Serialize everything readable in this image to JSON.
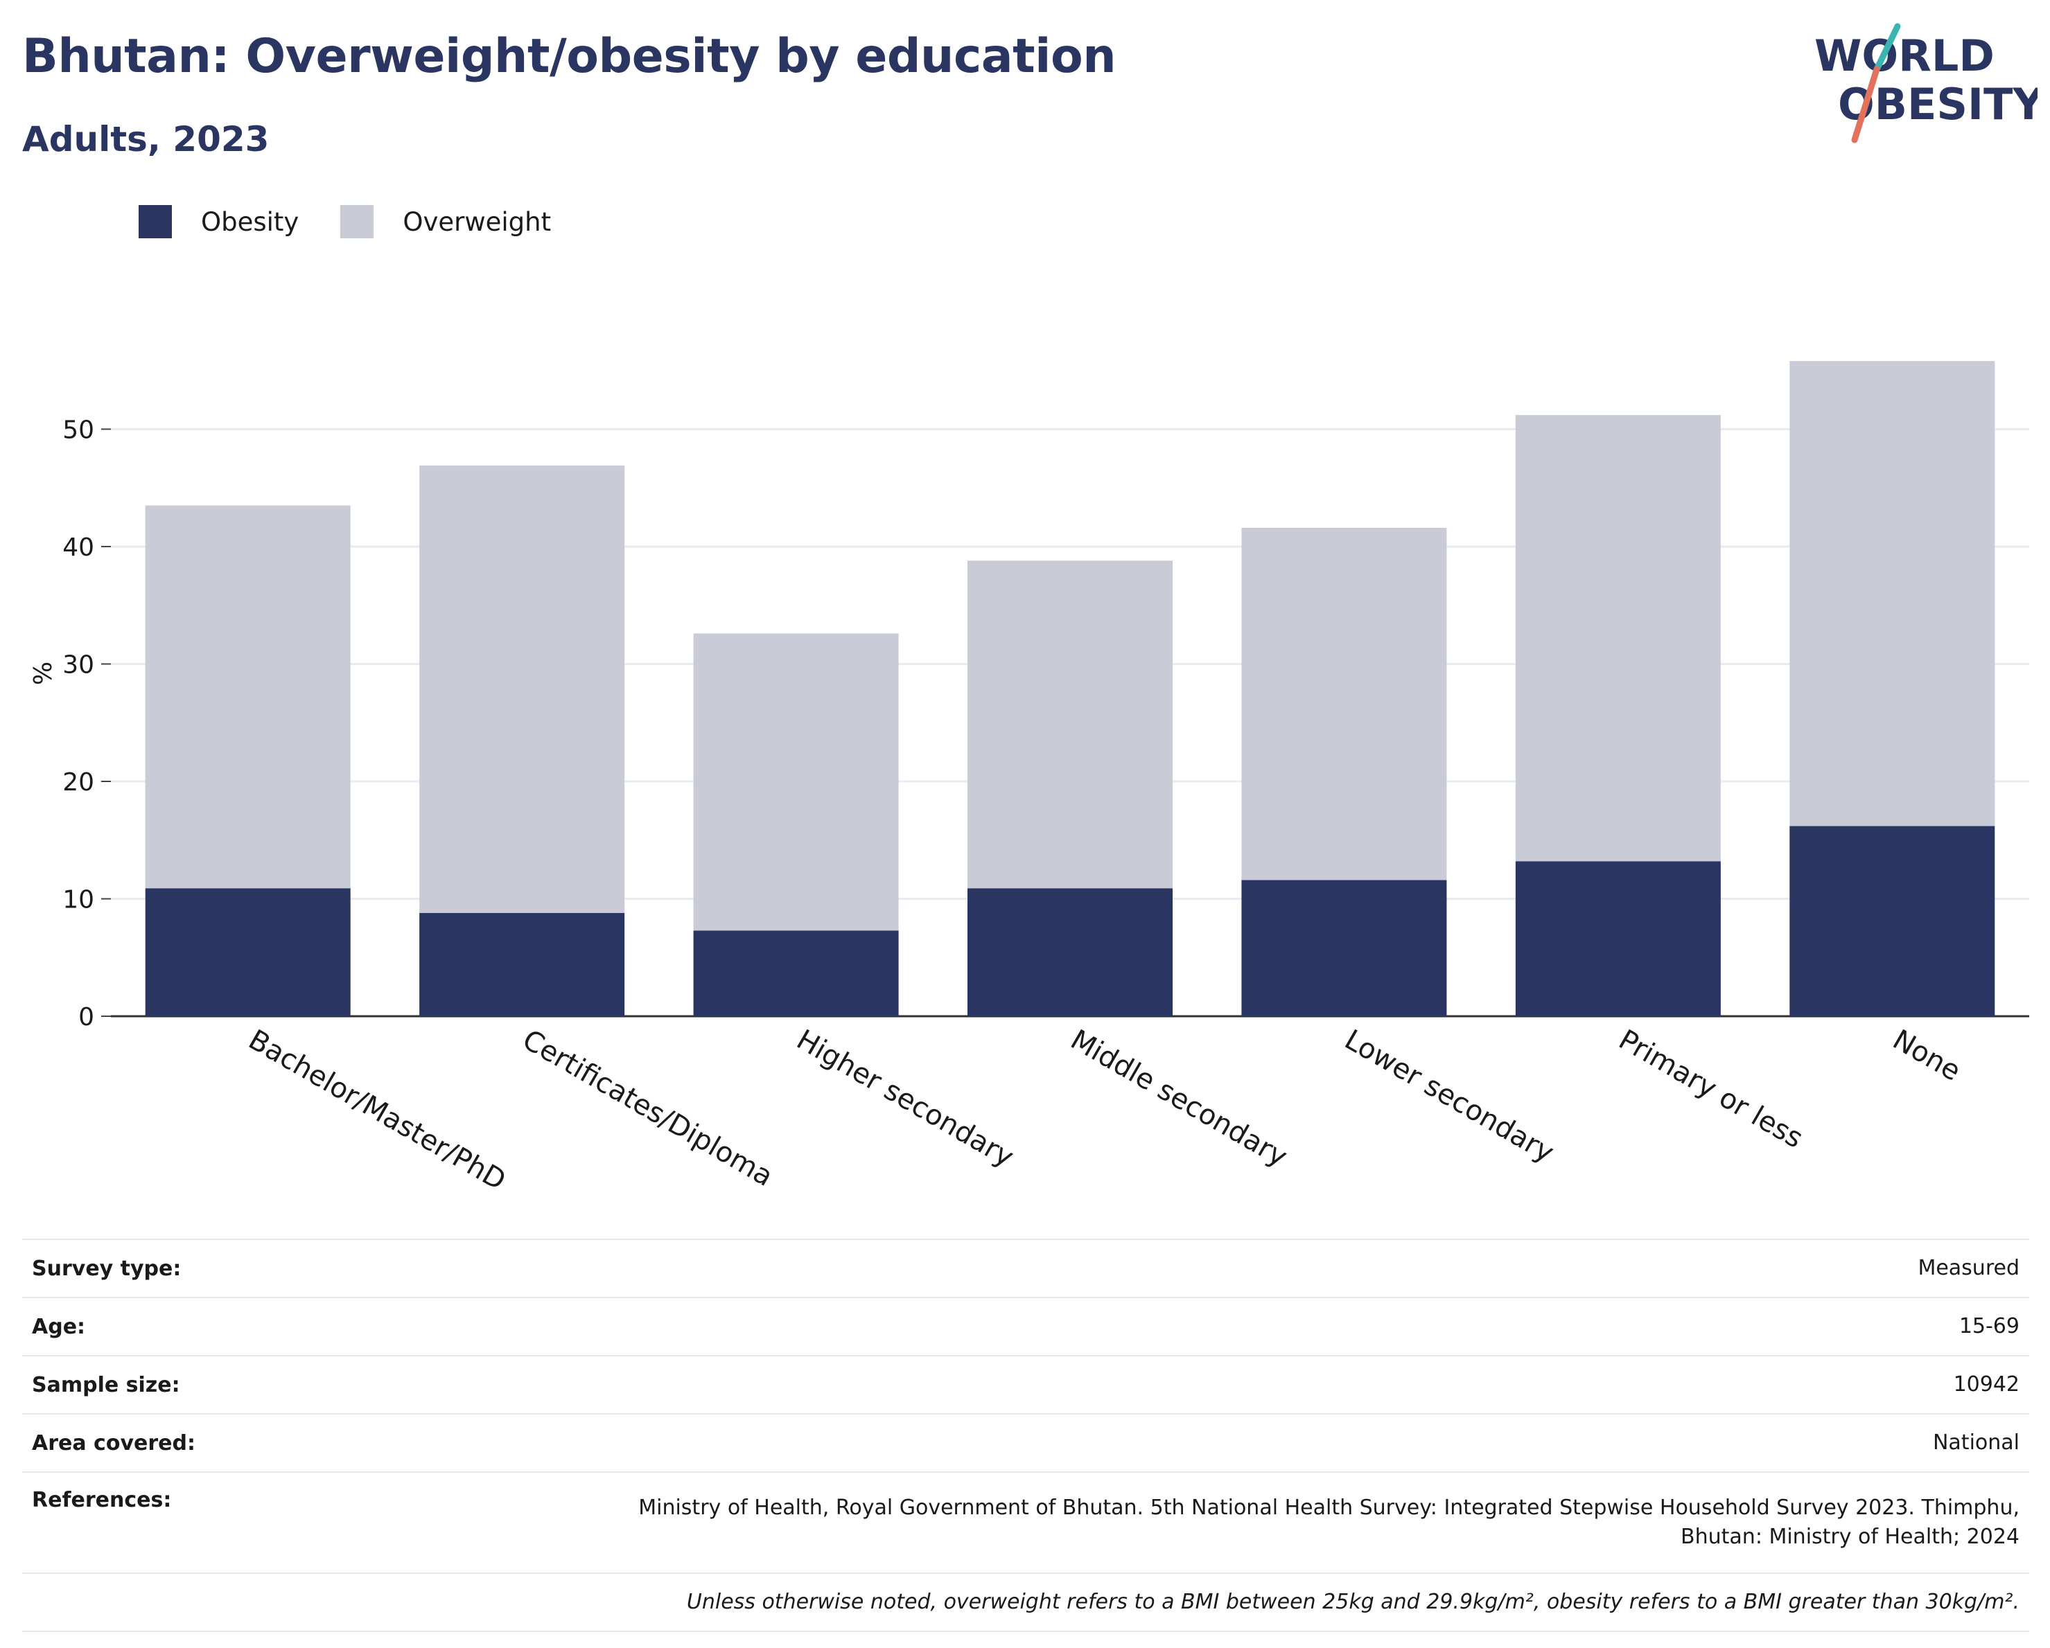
{
  "header": {
    "title": "Bhutan: Overweight/obesity by education",
    "subtitle": "Adults, 2023"
  },
  "logo": {
    "line1": "WORLD",
    "line2": "OBESITY",
    "colors": {
      "text": "#2a3562",
      "slash_top": "#3bb5b0",
      "slash_bottom": "#e2725b"
    }
  },
  "legend": {
    "items": [
      {
        "label": "Obesity",
        "color": "#2a3562"
      },
      {
        "label": "Overweight",
        "color": "#c9cbd7"
      }
    ]
  },
  "chart_data": {
    "type": "bar",
    "stacked": true,
    "title": "Bhutan: Overweight/obesity by education",
    "subtitle": "Adults, 2023",
    "xlabel": "",
    "ylabel": "%",
    "ylim": [
      0,
      58
    ],
    "yticks": [
      0,
      10,
      20,
      30,
      40,
      50
    ],
    "grid": true,
    "legend_position": "top-left",
    "categories": [
      "Bachelor/Master/PhD",
      "Certificates/Diploma",
      "Higher secondary",
      "Middle secondary",
      "Lower secondary",
      "Primary or less",
      "None"
    ],
    "series": [
      {
        "name": "Obesity",
        "color": "#2a3562",
        "values": [
          10.9,
          8.8,
          7.3,
          10.9,
          11.6,
          13.2,
          16.2
        ]
      },
      {
        "name": "Overweight",
        "color": "#c9cbd7",
        "values": [
          32.6,
          38.1,
          25.3,
          27.9,
          30.0,
          38.0,
          39.6
        ]
      }
    ]
  },
  "info": {
    "rows": [
      {
        "key": "Survey type:",
        "value": "Measured"
      },
      {
        "key": "Age:",
        "value": "15-69"
      },
      {
        "key": "Sample size:",
        "value": "10942"
      },
      {
        "key": "Area covered:",
        "value": "National"
      }
    ],
    "references_key": "References:",
    "references_line1": "Ministry of Health, Royal Government of Bhutan. 5th National Health Survey: Integrated Stepwise Household Survey 2023. Thimphu,",
    "references_line2": "Bhutan: Ministry of Health; 2024",
    "note": "Unless otherwise noted, overweight refers to a BMI between 25kg and 29.9kg/m², obesity refers to a BMI greater than 30kg/m²."
  }
}
